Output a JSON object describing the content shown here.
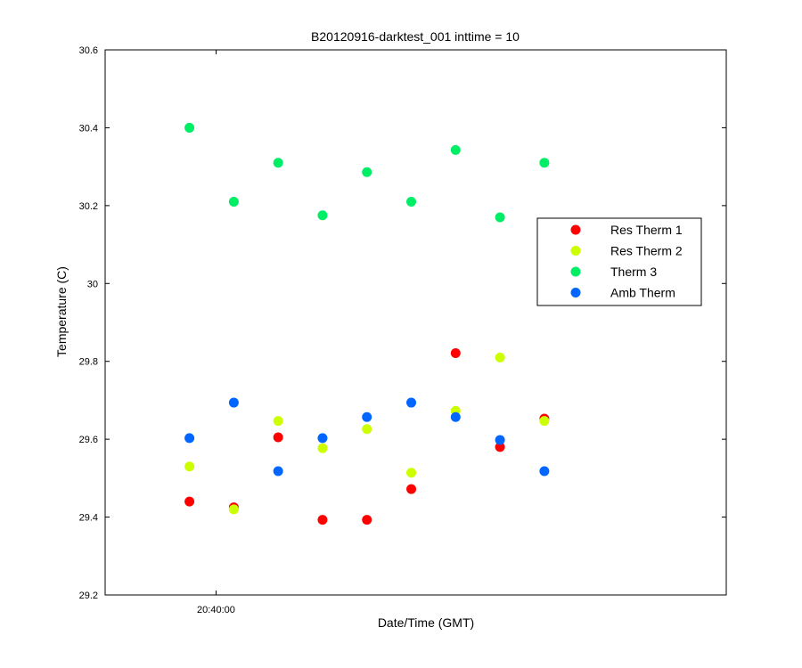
{
  "chart_data": {
    "type": "scatter",
    "title": "B20120916-darktest_001 inttime = 10",
    "xlabel": "Date/Time (GMT)",
    "ylabel": "Temperature (C)",
    "ylim": [
      29.2,
      30.6
    ],
    "yticks": [
      "29.2",
      "29.4",
      "29.6",
      "29.8",
      "30",
      "30.2",
      "30.4",
      "30.6"
    ],
    "xticks": [
      {
        "label": "20:40:00",
        "x": 2.5
      }
    ],
    "xlim": [
      0,
      14
    ],
    "x": [
      1.9,
      2.9,
      3.9,
      4.9,
      5.9,
      6.9,
      7.9,
      8.9,
      9.9
    ],
    "legend_position": "right",
    "series": [
      {
        "name": "Res Therm 1",
        "color": "#ff0000",
        "values": [
          29.44,
          29.425,
          29.605,
          29.393,
          29.393,
          29.472,
          29.821,
          29.58,
          29.653
        ]
      },
      {
        "name": "Res Therm 2",
        "color": "#ccff00",
        "values": [
          29.53,
          29.42,
          29.647,
          29.577,
          29.626,
          29.514,
          29.673,
          29.81,
          29.647
        ]
      },
      {
        "name": "Therm 3",
        "color": "#00ee66",
        "values": [
          30.4,
          30.21,
          30.31,
          30.175,
          30.286,
          30.21,
          30.343,
          30.17,
          30.31
        ]
      },
      {
        "name": "Amb Therm",
        "color": "#0066ff",
        "values": [
          29.603,
          29.694,
          29.518,
          29.603,
          29.657,
          29.694,
          29.657,
          29.598,
          29.518
        ]
      }
    ]
  }
}
